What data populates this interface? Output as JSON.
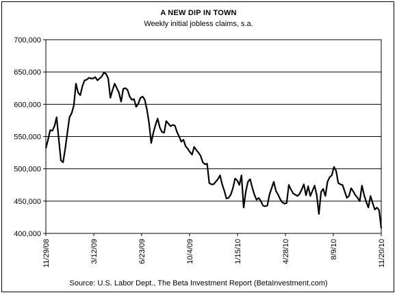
{
  "chart_data": {
    "type": "line",
    "title": "A NEW DIP IN TOWN",
    "subtitle": "Weekly initial jobless claims, s.a.",
    "source": "Source: U.S. Labor Dept., The Beta Investment Report (BetaInvestment.com)",
    "xlabel": "",
    "ylabel": "",
    "ylim": [
      400000,
      700000
    ],
    "yticks": [
      400000,
      450000,
      500000,
      550000,
      600000,
      650000,
      700000
    ],
    "ytick_labels": [
      "400,000",
      "450,000",
      "500,000",
      "550,000",
      "600,000",
      "650,000",
      "700,000"
    ],
    "xtick_labels": [
      "11/29/08",
      "3/12/09",
      "6/23/09",
      "10/4/09",
      "1/15/10",
      "4/28/10",
      "8/9/10",
      "11/20/10"
    ],
    "grid": "horizontal",
    "line_color": "#000000",
    "series": [
      {
        "name": "",
        "values": [
          532000,
          545000,
          560000,
          559000,
          566000,
          580000,
          546000,
          513000,
          510000,
          531000,
          556000,
          580000,
          586000,
          598000,
          632000,
          618000,
          614000,
          628000,
          637000,
          638000,
          641000,
          640000,
          640000,
          642000,
          637000,
          640000,
          643000,
          649000,
          647000,
          640000,
          610000,
          622000,
          632000,
          625000,
          618000,
          604000,
          624000,
          625000,
          622000,
          612000,
          607000,
          608000,
          596000,
          601000,
          610000,
          612000,
          607000,
          592000,
          571000,
          540000,
          556000,
          568000,
          578000,
          564000,
          557000,
          556000,
          574000,
          570000,
          566000,
          568000,
          567000,
          557000,
          550000,
          542000,
          545000,
          535000,
          531000,
          526000,
          522000,
          534000,
          529000,
          525000,
          520000,
          510000,
          507000,
          508000,
          478000,
          476000,
          476000,
          480000,
          484000,
          490000,
          476000,
          466000,
          454000,
          455000,
          460000,
          470000,
          485000,
          482000,
          475000,
          490000,
          440000,
          465000,
          480000,
          484000,
          471000,
          460000,
          452000,
          455000,
          450000,
          443000,
          442000,
          443000,
          460000,
          470000,
          480000,
          466000,
          460000,
          453000,
          448000,
          446000,
          447000,
          475000,
          468000,
          462000,
          460000,
          458000,
          461000,
          468000,
          476000,
          459000,
          473000,
          458000,
          466000,
          474000,
          459000,
          430000,
          464000,
          469000,
          458000,
          480000,
          487000,
          490000,
          503000,
          497000,
          478000,
          476000,
          475000,
          465000,
          455000,
          458000,
          470000,
          465000,
          459000,
          455000,
          450000,
          474000,
          460000,
          449000,
          440000,
          458000,
          447000,
          437000,
          440000,
          436000,
          408000
        ]
      }
    ]
  }
}
